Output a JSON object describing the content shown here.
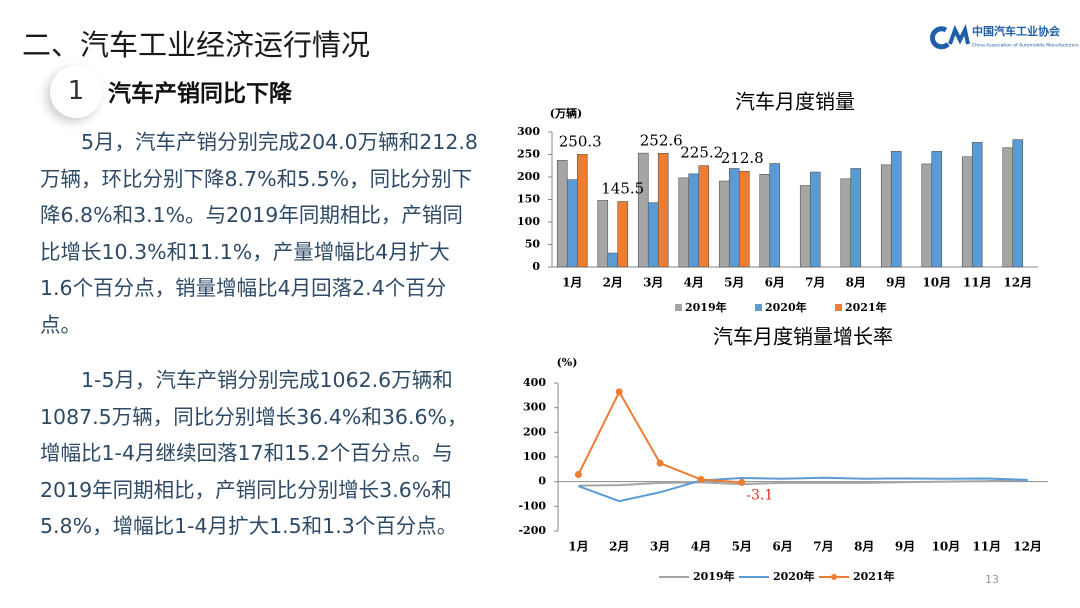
{
  "header": {
    "title": "二、汽车工业经济运行情况",
    "number": "1",
    "subtitle": "汽车产销同比下降"
  },
  "logo": {
    "name": "中国汽车工业协会",
    "english": "China Association of Automobile Manufacturers"
  },
  "paragraphs": [
    "5月，汽车产销分别完成204.0万辆和212.8万辆，环比分别下降8.7%和5.5%，同比分别下降6.8%和3.1%。与2019年同期相比，产销同比增长10.3%和11.1%，产量增幅比4月扩大1.6个百分点，销量增幅比4月回落2.4个百分点。",
    "1-5月，汽车产销分别完成1062.6万辆和1087.5万辆，同比分别增长36.4%和36.6%，增幅比1-4月继续回落17和15.2个百分点。与2019年同期相比，产销同比分别增长3.6%和5.8%，增幅比1-4月扩大1.5和1.3个百分点。"
  ],
  "page_number": "13",
  "chart_data": [
    {
      "type": "bar",
      "title": "汽车月度销量",
      "y_label": "(万辆)",
      "categories": [
        "1月",
        "2月",
        "3月",
        "4月",
        "5月",
        "6月",
        "7月",
        "8月",
        "9月",
        "10月",
        "11月",
        "12月"
      ],
      "series": [
        {
          "name": "2019年",
          "color": "#a5a5a5",
          "values": [
            237,
            148,
            253,
            198,
            191,
            206,
            181,
            196,
            227,
            229,
            245,
            265
          ]
        },
        {
          "name": "2020年",
          "color": "#5b9bd5",
          "values": [
            194,
            31,
            143,
            207,
            219,
            230,
            211,
            219,
            257,
            257,
            277,
            283
          ]
        },
        {
          "name": "2021年",
          "color": "#ed7d31",
          "data_labels": true,
          "values": [
            250.3,
            145.5,
            252.6,
            225.2,
            212.8,
            null,
            null,
            null,
            null,
            null,
            null,
            null
          ]
        }
      ],
      "ylim": [
        0,
        300
      ],
      "yticks": [
        0,
        50,
        100,
        150,
        200,
        250,
        300
      ],
      "grid": false,
      "legend": "bottom"
    },
    {
      "type": "line",
      "title": "汽车月度销量增长率",
      "y_label": "(%)",
      "categories": [
        "1月",
        "2月",
        "3月",
        "4月",
        "5月",
        "6月",
        "7月",
        "8月",
        "9月",
        "10月",
        "11月",
        "12月"
      ],
      "series": [
        {
          "name": "2019年",
          "color": "#a5a5a5",
          "values": [
            -16,
            -14,
            -5,
            -3,
            -10,
            -5,
            -5,
            -5,
            -2,
            0,
            2,
            8
          ]
        },
        {
          "name": "2020年",
          "color": "#5b9bd5",
          "values": [
            -18,
            -79,
            -43,
            5,
            15,
            12,
            16,
            12,
            13,
            12,
            13,
            7
          ]
        },
        {
          "name": "2021年",
          "color": "#ed7d31",
          "markers": true,
          "last_label": true,
          "values": [
            29,
            364,
            75,
            9,
            -3.1,
            null,
            null,
            null,
            null,
            null,
            null,
            null
          ]
        }
      ],
      "ylim": [
        -200,
        400
      ],
      "yticks": [
        -200,
        -100,
        0,
        100,
        200,
        300,
        400
      ],
      "grid": false,
      "legend": "bottom"
    }
  ]
}
